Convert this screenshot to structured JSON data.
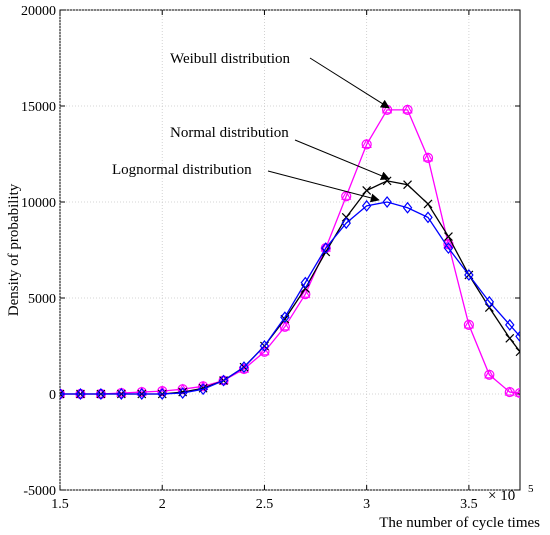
{
  "chart_data": {
    "type": "line",
    "xlabel": "The number of cycle times",
    "ylabel": "Density of probability",
    "x_multiplier": "× 10",
    "x_multiplier_exp": "5",
    "xlim": [
      1.5,
      3.75
    ],
    "ylim": [
      -5000,
      20000
    ],
    "x_ticks": [
      "1.5",
      "2",
      "2.5",
      "3",
      "3.5"
    ],
    "y_ticks": [
      "-5000",
      "0",
      "5000",
      "10000",
      "15000",
      "20000"
    ],
    "grid": true,
    "x": [
      1.5,
      1.6,
      1.7,
      1.8,
      1.9,
      2.0,
      2.1,
      2.2,
      2.3,
      2.4,
      2.5,
      2.6,
      2.7,
      2.8,
      2.9,
      3.0,
      3.1,
      3.2,
      3.3,
      3.4,
      3.5,
      3.6,
      3.7,
      3.75
    ],
    "series": [
      {
        "color": "#ff00ff",
        "marker": "circle+triangle",
        "values": [
          0,
          0,
          0,
          50,
          100,
          150,
          250,
          400,
          700,
          1300,
          2200,
          3500,
          5200,
          7600,
          10300,
          13000,
          14800,
          14800,
          12300,
          7800,
          3600,
          1000,
          100,
          50
        ]
      },
      {
        "color": "#000000",
        "marker": "x",
        "values": [
          0,
          0,
          0,
          0,
          0,
          0,
          100,
          300,
          700,
          1400,
          2500,
          3900,
          5500,
          7400,
          9200,
          10600,
          11100,
          10900,
          9900,
          8200,
          6200,
          4500,
          2900,
          2200
        ]
      },
      {
        "color": "#0000ff",
        "marker": "diamond",
        "values": [
          0,
          0,
          0,
          0,
          0,
          0,
          50,
          250,
          700,
          1400,
          2500,
          4000,
          5800,
          7600,
          8900,
          9800,
          10000,
          9700,
          9200,
          7600,
          6200,
          4800,
          3600,
          3000
        ]
      }
    ],
    "annotations": [
      {
        "text": "Weibull distribution",
        "target_x": 3.1,
        "target_y": 14800
      },
      {
        "text": "Normal distribution",
        "target_x": 3.1,
        "target_y": 11100
      },
      {
        "text": "Lognormal distribution",
        "target_x": 3.05,
        "target_y": 10000
      }
    ]
  }
}
